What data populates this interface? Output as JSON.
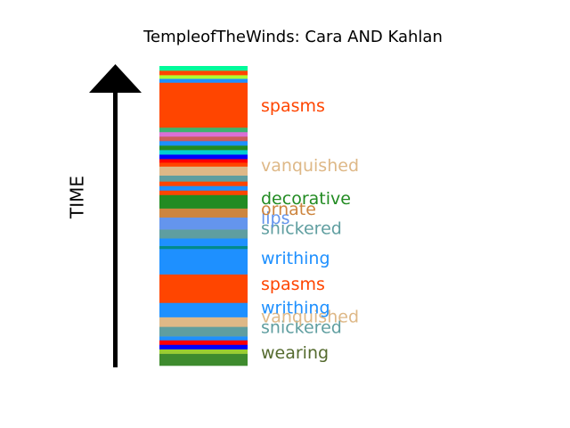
{
  "chart_data": {
    "type": "timeline",
    "title": "TempleofTheWinds: Cara AND Kahlan",
    "ylabel": "TIME",
    "ylim": [
      0,
      100
    ],
    "bands": [
      {
        "start": 0.0,
        "end": 4.0,
        "color": "#3e8b2e"
      },
      {
        "start": 4.0,
        "end": 5.5,
        "color": "#9acd32"
      },
      {
        "start": 5.5,
        "end": 7.0,
        "color": "#0000ff"
      },
      {
        "start": 7.0,
        "end": 8.5,
        "color": "#ff0000"
      },
      {
        "start": 8.5,
        "end": 9.8,
        "color": "#1e90ff"
      },
      {
        "start": 9.8,
        "end": 13.0,
        "color": "#5f9ea0"
      },
      {
        "start": 13.0,
        "end": 16.2,
        "color": "#deb887"
      },
      {
        "start": 16.2,
        "end": 21.0,
        "color": "#1e90ff"
      },
      {
        "start": 21.0,
        "end": 30.5,
        "color": "#ff4500"
      },
      {
        "start": 30.5,
        "end": 39.0,
        "color": "#1e90ff"
      },
      {
        "start": 39.0,
        "end": 40.0,
        "color": "#008b8b"
      },
      {
        "start": 40.0,
        "end": 42.5,
        "color": "#1e90ff"
      },
      {
        "start": 42.5,
        "end": 45.5,
        "color": "#5f9ea0"
      },
      {
        "start": 45.5,
        "end": 49.5,
        "color": "#6495ed"
      },
      {
        "start": 49.5,
        "end": 52.5,
        "color": "#cd853f"
      },
      {
        "start": 52.5,
        "end": 57.0,
        "color": "#228b22"
      },
      {
        "start": 57.0,
        "end": 58.5,
        "color": "#ff4500"
      },
      {
        "start": 58.5,
        "end": 60.0,
        "color": "#1e90ff"
      },
      {
        "start": 60.0,
        "end": 61.5,
        "color": "#ff4500"
      },
      {
        "start": 61.5,
        "end": 63.5,
        "color": "#5f9ea0"
      },
      {
        "start": 63.5,
        "end": 66.5,
        "color": "#deb887"
      },
      {
        "start": 66.5,
        "end": 67.8,
        "color": "#ff4500"
      },
      {
        "start": 67.8,
        "end": 69.0,
        "color": "#ff0000"
      },
      {
        "start": 69.0,
        "end": 70.5,
        "color": "#0000ff"
      },
      {
        "start": 70.5,
        "end": 72.0,
        "color": "#00ced1"
      },
      {
        "start": 72.0,
        "end": 73.5,
        "color": "#228b22"
      },
      {
        "start": 73.5,
        "end": 75.0,
        "color": "#1e90ff"
      },
      {
        "start": 75.0,
        "end": 76.5,
        "color": "#cd5c5c"
      },
      {
        "start": 76.5,
        "end": 78.0,
        "color": "#da70d6"
      },
      {
        "start": 78.0,
        "end": 79.5,
        "color": "#3cb371"
      },
      {
        "start": 79.5,
        "end": 94.5,
        "color": "#ff4500"
      },
      {
        "start": 94.5,
        "end": 95.8,
        "color": "#1e90ff"
      },
      {
        "start": 95.8,
        "end": 97.0,
        "color": "#adff2f"
      },
      {
        "start": 97.0,
        "end": 98.5,
        "color": "#ff4500"
      },
      {
        "start": 98.5,
        "end": 100.0,
        "color": "#00fa9a"
      }
    ],
    "labels": [
      {
        "text": "wearing",
        "y": 4.0,
        "color": "#556b2f"
      },
      {
        "text": "snickered",
        "y": 12.5,
        "color": "#5f9ea0"
      },
      {
        "text": "vanquished",
        "y": 16.0,
        "color": "#deb887"
      },
      {
        "text": "writhing",
        "y": 19.0,
        "color": "#1e90ff"
      },
      {
        "text": "spasms",
        "y": 27.0,
        "color": "#ff4500"
      },
      {
        "text": "writhing",
        "y": 35.5,
        "color": "#1e90ff"
      },
      {
        "text": "snickered",
        "y": 45.5,
        "color": "#5f9ea0"
      },
      {
        "text": "lips",
        "y": 49.0,
        "color": "#6495ed"
      },
      {
        "text": "ornate",
        "y": 52.0,
        "color": "#cd853f"
      },
      {
        "text": "decorative",
        "y": 55.5,
        "color": "#228b22"
      },
      {
        "text": "vanquished",
        "y": 66.5,
        "color": "#deb887"
      },
      {
        "text": "spasms",
        "y": 86.5,
        "color": "#ff4500"
      }
    ]
  }
}
